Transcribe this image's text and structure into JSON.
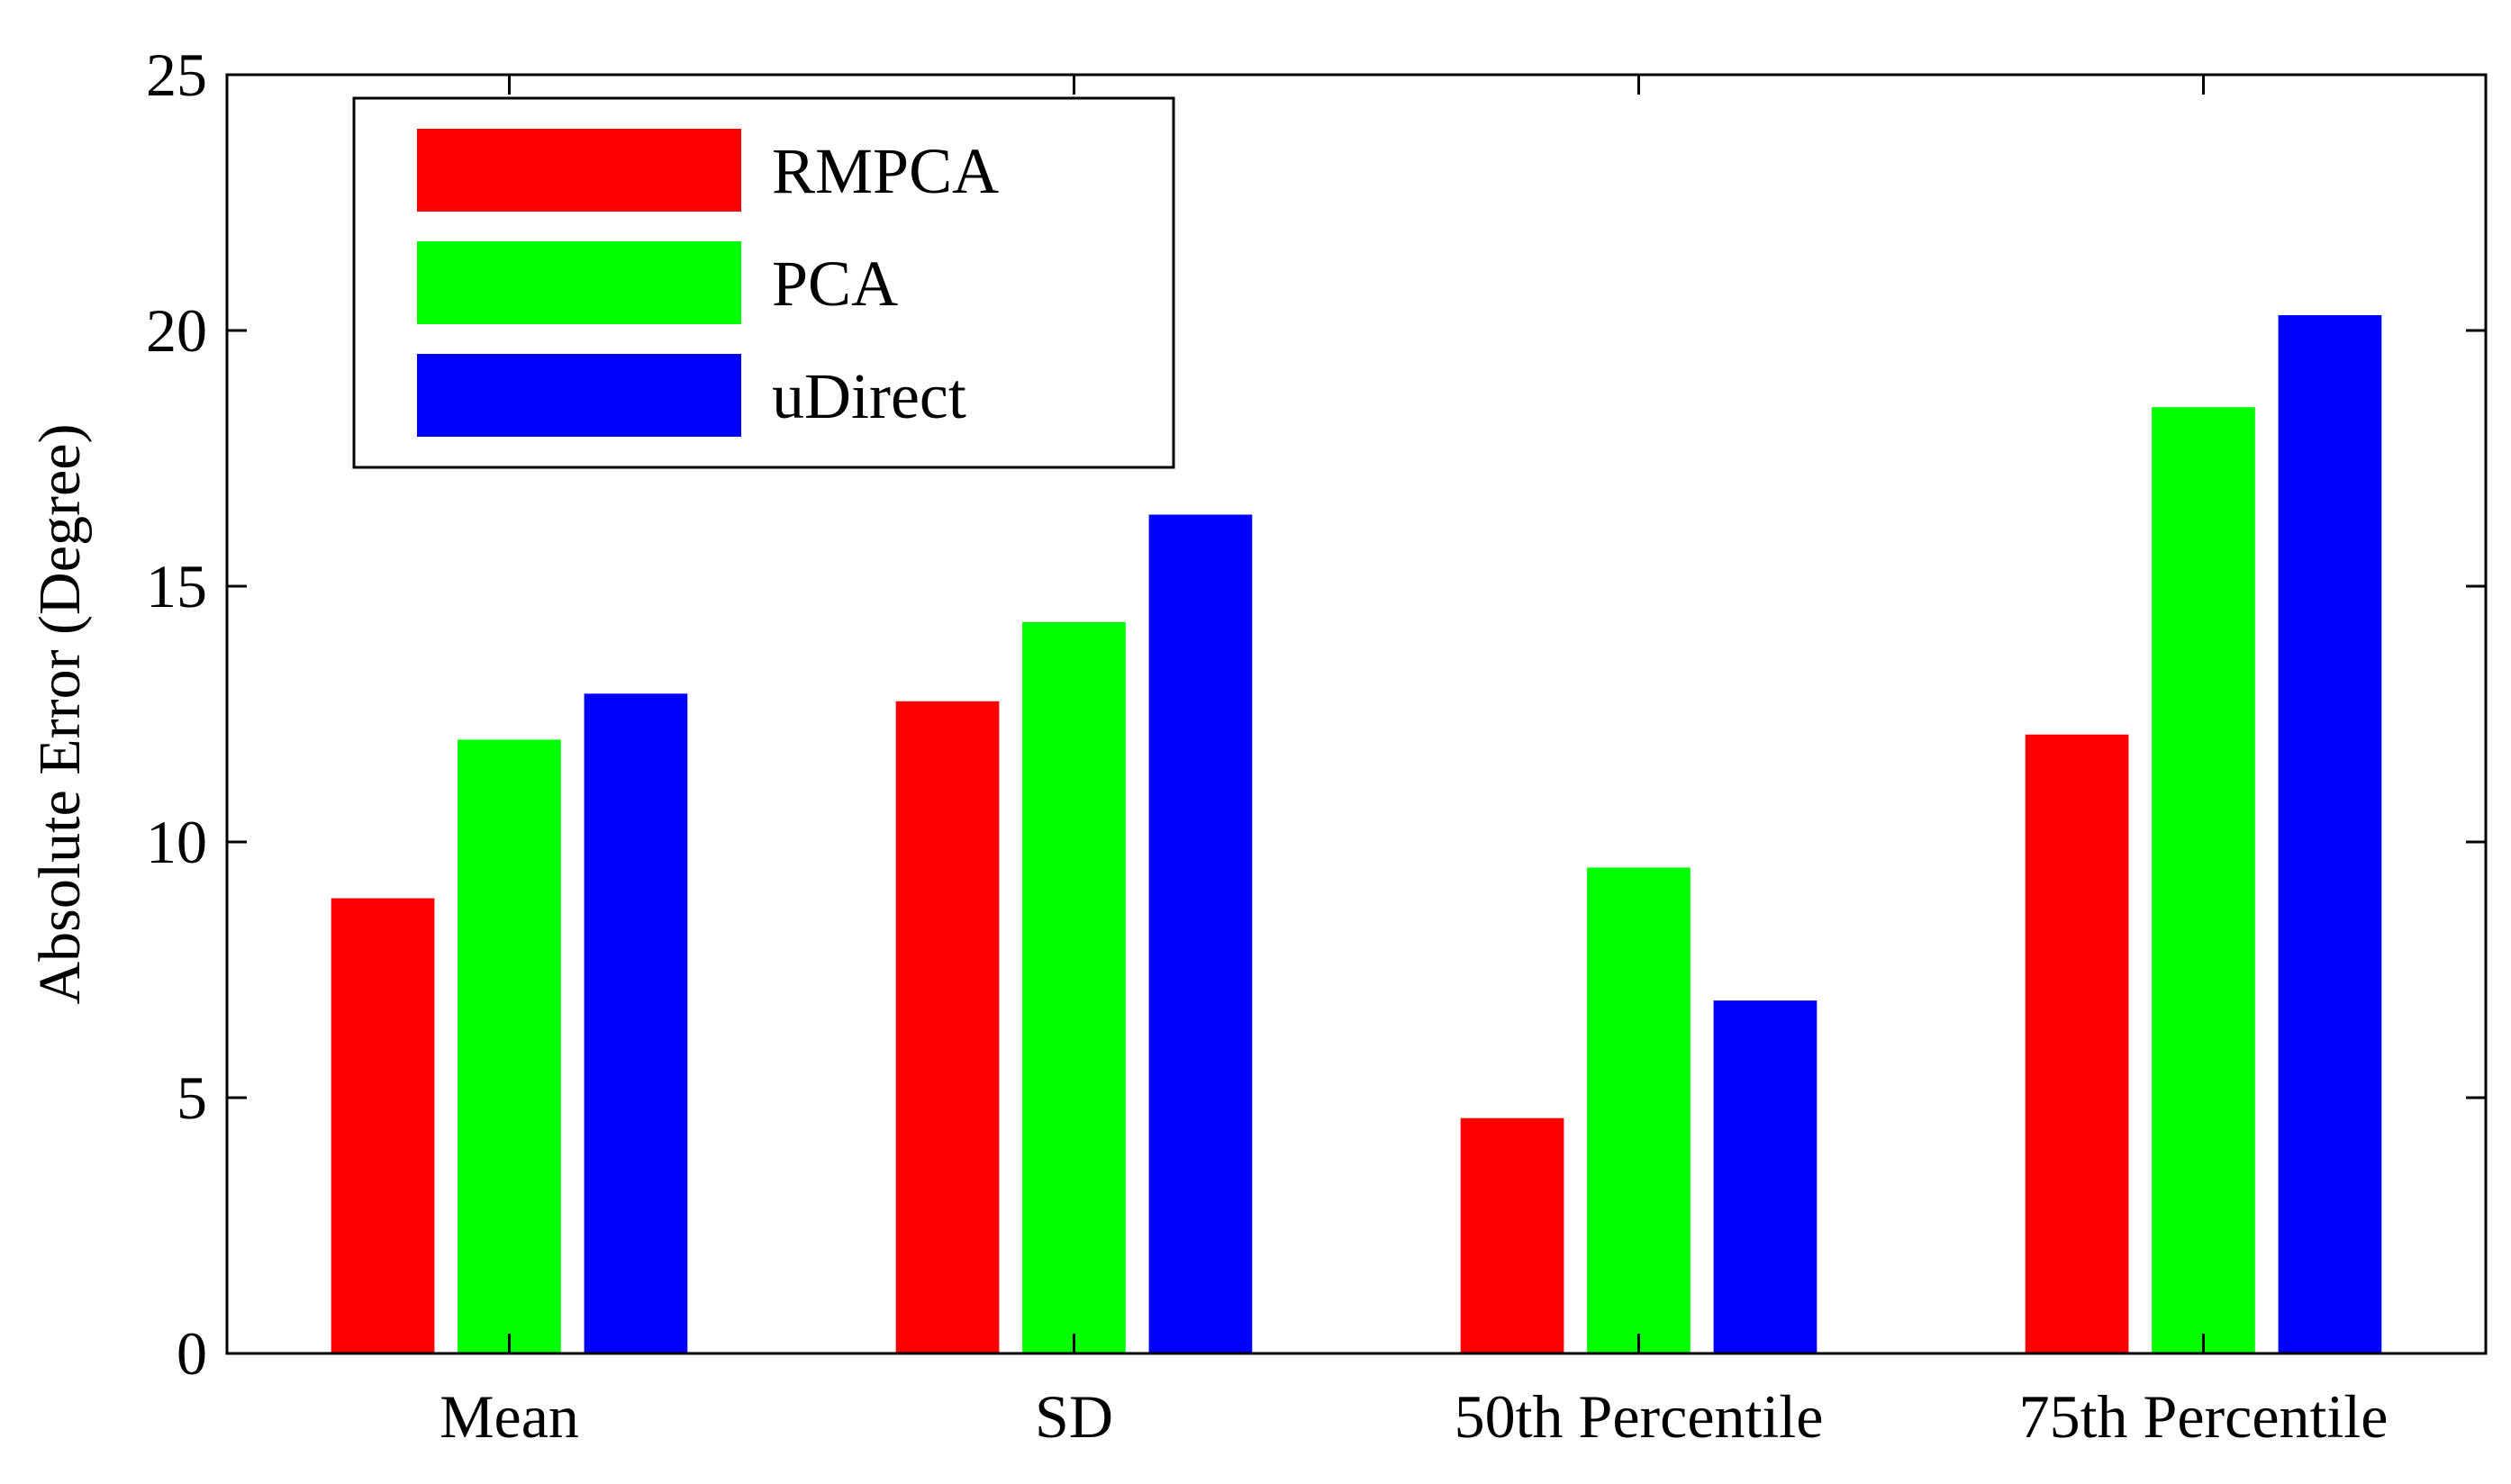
{
  "chart_data": {
    "type": "bar",
    "title": "",
    "xlabel": "",
    "ylabel": "Absolute Error (Degree)",
    "ylim": [
      0,
      25
    ],
    "yticks": [
      0,
      5,
      10,
      15,
      20,
      25
    ],
    "ytick_labels": [
      "0",
      "5",
      "10",
      "15",
      "20",
      "25"
    ],
    "categories": [
      "Mean",
      "SD",
      "50th Percentile",
      "75th Percentile"
    ],
    "series": [
      {
        "name": "RMPCA",
        "color": "#ff0000",
        "values": [
          8.9,
          12.75,
          4.6,
          12.1
        ]
      },
      {
        "name": "PCA",
        "color": "#00ff00",
        "values": [
          12.0,
          14.3,
          9.5,
          18.5
        ]
      },
      {
        "name": "uDirect",
        "color": "#0000ff",
        "values": [
          12.9,
          16.4,
          6.9,
          20.3
        ]
      }
    ],
    "legend": {
      "position": "top-left",
      "boxed": true
    },
    "grid": false
  }
}
